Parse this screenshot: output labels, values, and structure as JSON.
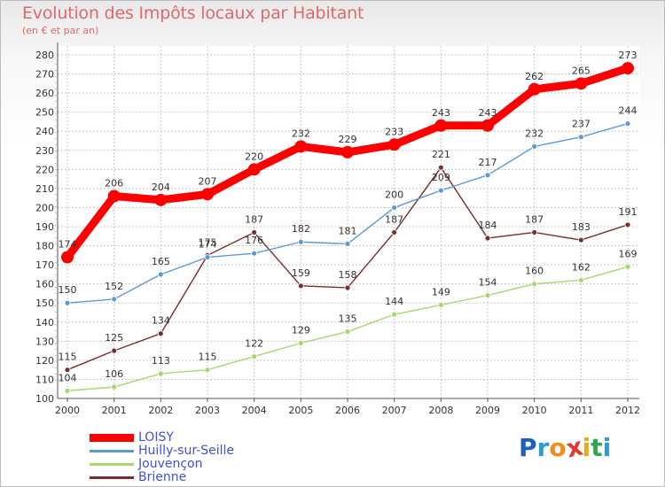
{
  "header": {
    "title": "Evolution des Impôts locaux par Habitant",
    "subtitle": "(en € et par an)"
  },
  "legend": [
    {
      "label": "LOISY",
      "color": "#ff0000"
    },
    {
      "label": "Huilly-sur-Seille",
      "color": "#5b9bd5"
    },
    {
      "label": "Jouvençon",
      "color": "#a6d96a"
    },
    {
      "label": "Brienne",
      "color": "#7b2c2c"
    }
  ],
  "logo": {
    "letters": [
      "P",
      "r",
      "o",
      "x",
      "i",
      "t",
      "i"
    ],
    "colors": [
      "#1f5fbf",
      "#2f9ad6",
      "#f28c1c",
      "#e03b2f",
      "#f2a51c",
      "#2fa84f",
      "#2f9ad6"
    ]
  },
  "chart_data": {
    "type": "line",
    "title": "Evolution des Impôts locaux par Habitant",
    "subtitle": "(en € et par an)",
    "xlabel": "",
    "ylabel": "",
    "ylim": [
      100,
      280
    ],
    "ytick_step": 10,
    "grid": true,
    "legend_position": "bottom-left",
    "x": [
      "2000",
      "2001",
      "2002",
      "2003",
      "2004",
      "2005",
      "2006",
      "2007",
      "2008",
      "2009",
      "2010",
      "2011",
      "2012"
    ],
    "series": [
      {
        "name": "LOISY",
        "color": "#ff0000",
        "labels": true,
        "values": [
          174,
          206,
          204,
          207,
          220,
          232,
          229,
          233,
          243,
          243,
          262,
          265,
          273
        ]
      },
      {
        "name": "Huilly-sur-Seille",
        "color": "#5b9bd5",
        "labels": true,
        "values": [
          150,
          152,
          165,
          174,
          176,
          182,
          181,
          200,
          209,
          217,
          232,
          237,
          244
        ]
      },
      {
        "name": "Jouvençon",
        "color": "#a6d96a",
        "labels": true,
        "values": [
          104,
          106,
          113,
          115,
          122,
          129,
          135,
          144,
          149,
          154,
          160,
          162,
          169
        ]
      },
      {
        "name": "Brienne",
        "color": "#7b2c2c",
        "labels": true,
        "values": [
          115,
          125,
          134,
          175,
          187,
          159,
          158,
          187,
          221,
          184,
          187,
          183,
          191
        ]
      }
    ]
  }
}
